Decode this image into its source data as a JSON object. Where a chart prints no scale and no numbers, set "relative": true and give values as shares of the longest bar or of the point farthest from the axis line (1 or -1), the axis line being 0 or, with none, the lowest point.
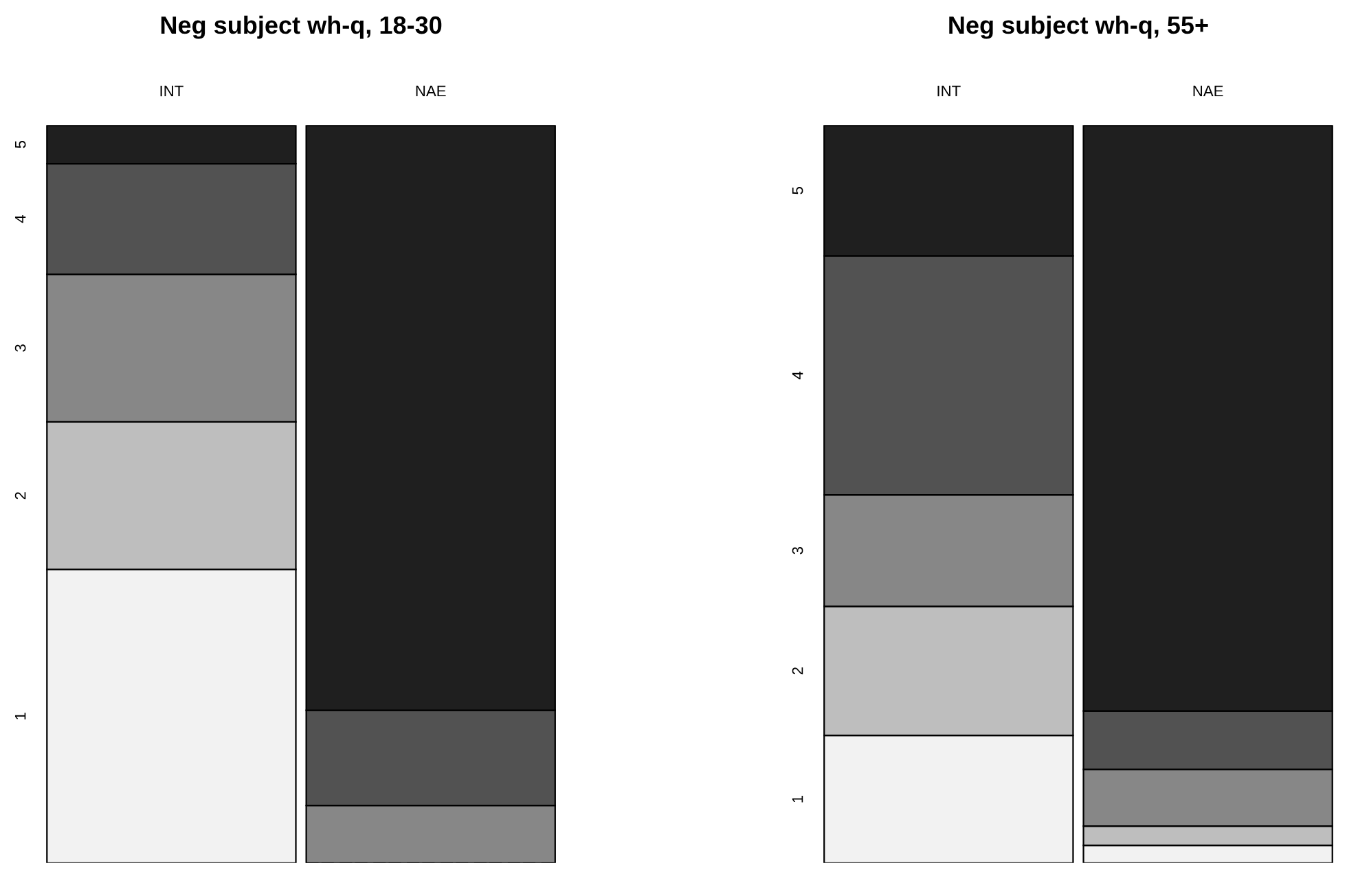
{
  "chart_data": [
    {
      "type": "bar",
      "stacked": true,
      "relative": true,
      "title": "Neg subject wh-q, 18-30",
      "categories": [
        "INT",
        "NAE"
      ],
      "legend": false,
      "series": [
        {
          "name": "1",
          "color": "#f2f2f2",
          "values": [
            0.398,
            0
          ]
        },
        {
          "name": "2",
          "color": "#bebebe",
          "values": [
            0.2,
            0
          ]
        },
        {
          "name": "3",
          "color": "#878787",
          "values": [
            0.2,
            0.078
          ]
        },
        {
          "name": "4",
          "color": "#525252",
          "values": [
            0.15,
            0.129
          ]
        },
        {
          "name": "5",
          "color": "#1f1f1f",
          "values": [
            0.052,
            0.793
          ]
        }
      ]
    },
    {
      "type": "bar",
      "stacked": true,
      "relative": true,
      "title": "Neg subject wh-q, 55+",
      "categories": [
        "INT",
        "NAE"
      ],
      "legend": false,
      "series": [
        {
          "name": "1",
          "color": "#f2f2f2",
          "values": [
            0.173,
            0.024
          ]
        },
        {
          "name": "2",
          "color": "#bebebe",
          "values": [
            0.175,
            0.026
          ]
        },
        {
          "name": "3",
          "color": "#878787",
          "values": [
            0.151,
            0.077
          ]
        },
        {
          "name": "4",
          "color": "#525252",
          "values": [
            0.324,
            0.079
          ]
        },
        {
          "name": "5",
          "color": "#1f1f1f",
          "values": [
            0.177,
            0.794
          ]
        }
      ]
    }
  ]
}
